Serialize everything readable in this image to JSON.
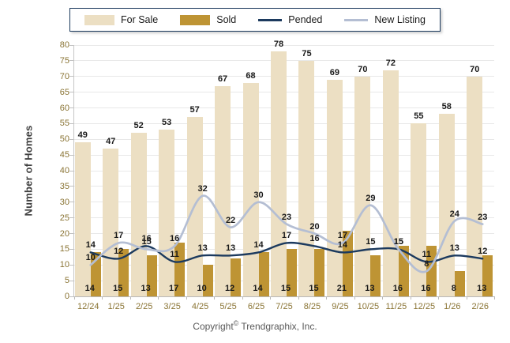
{
  "legend": {
    "items": [
      {
        "label": "For Sale",
        "type": "bar",
        "color": "#ECDFC3"
      },
      {
        "label": "Sold",
        "type": "bar",
        "color": "#BE9434"
      },
      {
        "label": "Pended",
        "type": "line",
        "color": "#1C3A5E"
      },
      {
        "label": "New Listing",
        "type": "line",
        "color": "#B4BED3"
      }
    ]
  },
  "footer": {
    "prefix": "Copyright",
    "symbol": "©",
    "suffix": "Trendgraphix, Inc."
  },
  "colors": {
    "for_sale_bar": "#ECDFC3",
    "sold_bar": "#BE9434",
    "pended_line": "#1C3A5E",
    "new_listing_line": "#B4BED3",
    "gridline": "#E8E8E8",
    "axis_line": "#B8B8B8",
    "tick_label": "#8A7434",
    "value_label": "#1A1A1A",
    "legend_border": "#1C3A5E",
    "footer_text": "#595959"
  },
  "chart_data": {
    "type": "bar",
    "subtype": "grouped bars with overlaid lines",
    "title": "",
    "xlabel": "",
    "ylabel": "Number of Homes",
    "ylim": [
      0,
      80
    ],
    "ytick_step": 5,
    "grid": true,
    "legend_position": "top",
    "categories": [
      "12/24",
      "1/25",
      "2/25",
      "3/25",
      "4/25",
      "5/25",
      "6/25",
      "7/25",
      "8/25",
      "9/25",
      "10/25",
      "11/25",
      "12/25",
      "1/26",
      "2/26"
    ],
    "series": [
      {
        "name": "For Sale",
        "type": "bar",
        "color": "#ECDFC3",
        "values": [
          49,
          47,
          52,
          53,
          57,
          67,
          68,
          78,
          75,
          69,
          70,
          72,
          55,
          58,
          70
        ]
      },
      {
        "name": "Sold",
        "type": "bar",
        "color": "#BE9434",
        "values": [
          14,
          15,
          13,
          17,
          10,
          12,
          14,
          15,
          15,
          21,
          13,
          16,
          16,
          8,
          13
        ]
      },
      {
        "name": "Pended",
        "type": "line",
        "color": "#1C3A5E",
        "values": [
          14,
          12,
          16,
          11,
          13,
          13,
          14,
          17,
          16,
          14,
          15,
          15,
          11,
          13,
          12
        ]
      },
      {
        "name": "New Listing",
        "type": "line",
        "color": "#B4BED3",
        "values": [
          10,
          17,
          15,
          16,
          32,
          22,
          30,
          23,
          20,
          17,
          29,
          15,
          8,
          24,
          23
        ]
      }
    ]
  }
}
